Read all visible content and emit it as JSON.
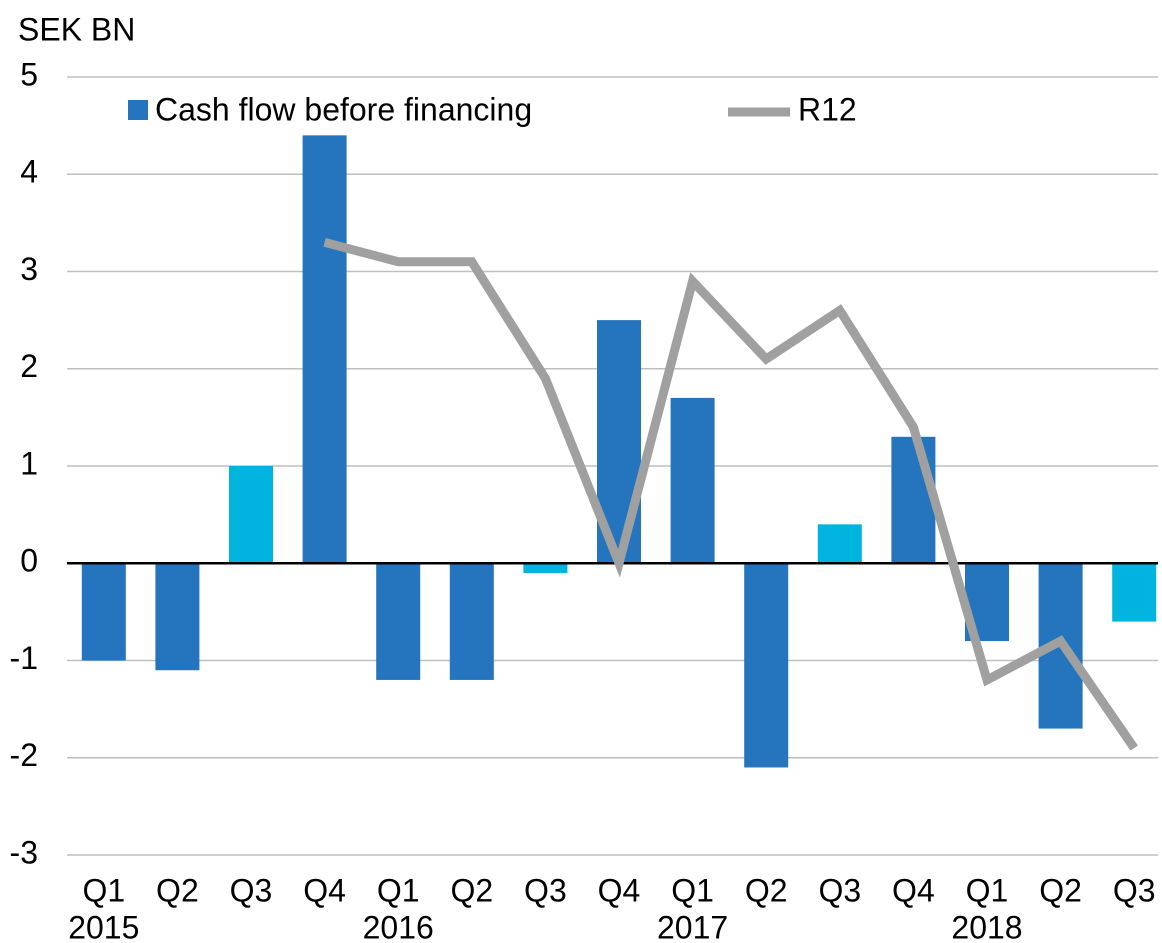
{
  "chart_data": {
    "type": "bar",
    "unit_label": "SEK BN",
    "categories": [
      "Q1",
      "Q2",
      "Q3",
      "Q4",
      "Q1",
      "Q2",
      "Q3",
      "Q4",
      "Q1",
      "Q2",
      "Q3",
      "Q4",
      "Q1",
      "Q2",
      "Q3"
    ],
    "years": [
      "2015",
      "2016",
      "2017",
      "2018"
    ],
    "series": [
      {
        "name": "Cash flow before financing",
        "type": "bar",
        "color": "#2475be",
        "colors": [
          "#2475be",
          "#2475be",
          "#00b4e0",
          "#2475be",
          "#2475be",
          "#2475be",
          "#00b4e0",
          "#2475be",
          "#2475be",
          "#2475be",
          "#00b4e0",
          "#2475be",
          "#2475be",
          "#2475be",
          "#00b4e0"
        ],
        "values": [
          -1.0,
          -1.1,
          1.0,
          4.4,
          -1.2,
          -1.2,
          -0.1,
          2.5,
          1.7,
          -2.1,
          0.4,
          1.3,
          -0.8,
          -1.7,
          -0.6
        ]
      },
      {
        "name": "R12",
        "type": "line",
        "color": "#a0a0a0",
        "values": [
          null,
          null,
          null,
          3.3,
          3.1,
          3.1,
          1.9,
          0.0,
          2.9,
          2.1,
          2.6,
          1.4,
          -1.2,
          -0.8,
          -1.9
        ]
      }
    ],
    "ylim": [
      -3,
      5
    ],
    "yticks": [
      -3,
      -2,
      -1,
      0,
      1,
      2,
      3,
      4,
      5
    ],
    "grid": true
  }
}
